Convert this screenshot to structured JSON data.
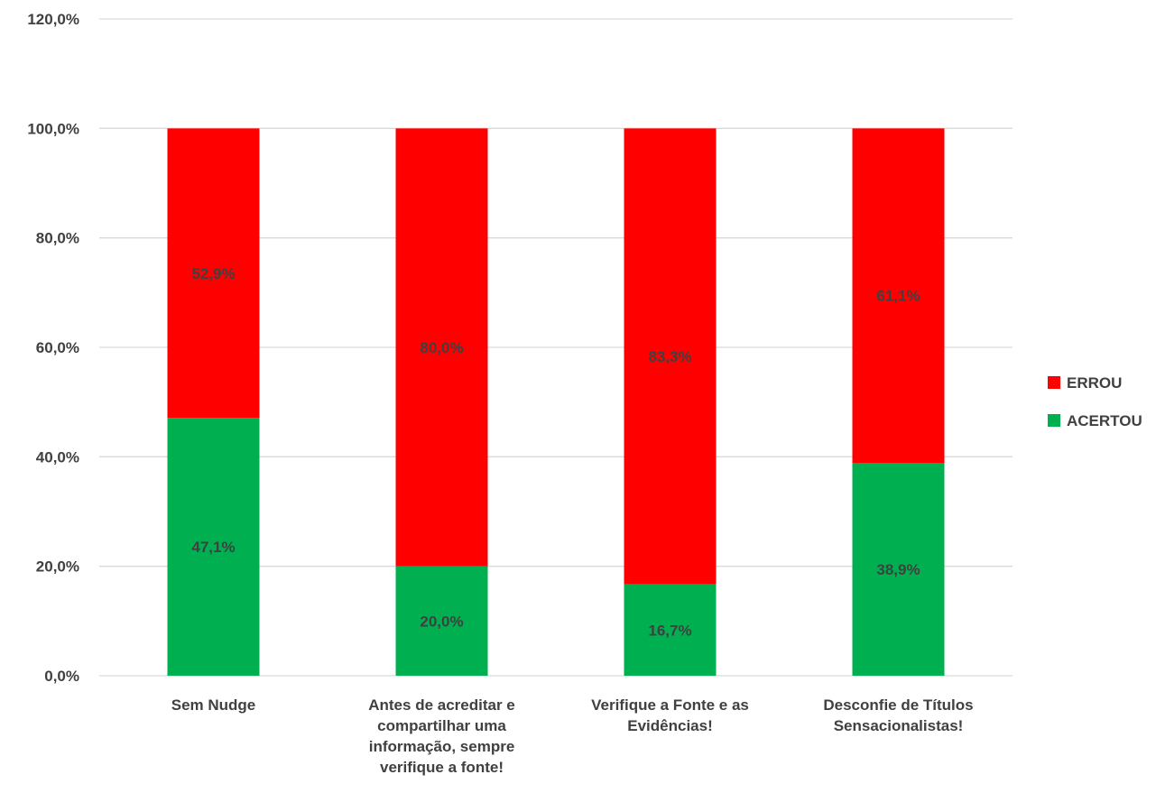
{
  "chart_data": {
    "type": "bar",
    "stacked": true,
    "categories": [
      "Sem Nudge",
      "Antes de acreditar e compartilhar uma informação, sempre verifique a fonte!",
      "Verifique a Fonte e as Evidências!",
      "Desconfie de Títulos Sensacionalistas!"
    ],
    "category_lines": [
      [
        "Sem Nudge"
      ],
      [
        "Antes de acreditar e",
        "compartilhar uma",
        "informação, sempre",
        "verifique a fonte!"
      ],
      [
        "Verifique a Fonte e as",
        "Evidências!"
      ],
      [
        "Desconfie de Títulos",
        "Sensacionalistas!"
      ]
    ],
    "series": [
      {
        "name": "ACERTOU",
        "color": "#00b050",
        "values": [
          47.1,
          20.0,
          16.7,
          38.9
        ],
        "labels": [
          "47,1%",
          "20,0%",
          "16,7%",
          "38,9%"
        ]
      },
      {
        "name": "ERROU",
        "color": "#ff0000",
        "values": [
          52.9,
          80.0,
          83.3,
          61.1
        ],
        "labels": [
          "52,9%",
          "80,0%",
          "83,3%",
          "61,1%"
        ]
      }
    ],
    "ylim": [
      0,
      120
    ],
    "yticks": [
      0,
      20,
      40,
      60,
      80,
      100,
      120
    ],
    "ytick_labels": [
      "0,0%",
      "20,0%",
      "40,0%",
      "60,0%",
      "80,0%",
      "100,0%",
      "120,0%"
    ],
    "grid": true,
    "legend": {
      "position": "right",
      "order": [
        "ERROU",
        "ACERTOU"
      ]
    },
    "title": "",
    "xlabel": "",
    "ylabel": ""
  }
}
